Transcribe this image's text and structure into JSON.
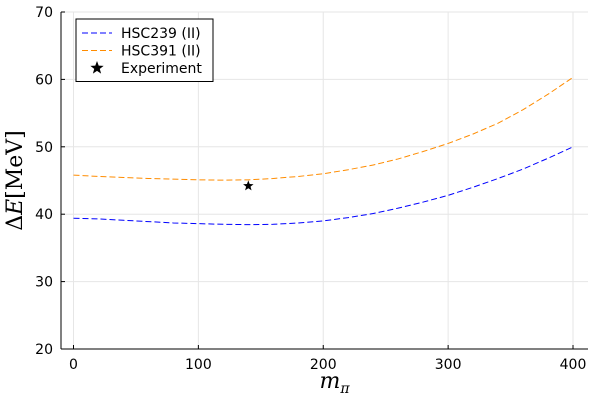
{
  "chart_data": {
    "type": "line",
    "title": "",
    "xlabel": {
      "main": "m",
      "sub": "π"
    },
    "ylabel": {
      "prefix": "Δ",
      "main": "E",
      "open": "[",
      "unit": "MeV",
      "close": "]"
    },
    "xlim": [
      -10,
      412
    ],
    "ylim": [
      20,
      70
    ],
    "x_ticks": [
      0,
      100,
      200,
      300,
      400
    ],
    "y_ticks": [
      20,
      30,
      40,
      50,
      60,
      70
    ],
    "grid": true,
    "legend_position": "top-left",
    "series": [
      {
        "name": "HSC239 (II)",
        "color": "#0000ff",
        "style": "dashed",
        "x": [
          0,
          20,
          40,
          60,
          80,
          100,
          120,
          140,
          160,
          180,
          200,
          220,
          240,
          260,
          280,
          300,
          320,
          340,
          360,
          380,
          400
        ],
        "y": [
          39.4,
          39.3,
          39.1,
          38.9,
          38.7,
          38.6,
          38.5,
          38.45,
          38.5,
          38.7,
          39.0,
          39.5,
          40.1,
          40.9,
          41.8,
          42.8,
          44.0,
          45.3,
          46.7,
          48.3,
          50.0
        ]
      },
      {
        "name": "HSC391 (II)",
        "color": "#ff8c00",
        "style": "dashed",
        "x": [
          0,
          20,
          40,
          60,
          80,
          100,
          120,
          140,
          160,
          180,
          200,
          220,
          240,
          260,
          280,
          300,
          320,
          340,
          360,
          380,
          400
        ],
        "y": [
          45.8,
          45.6,
          45.45,
          45.3,
          45.2,
          45.1,
          45.05,
          45.1,
          45.3,
          45.6,
          46.0,
          46.6,
          47.3,
          48.2,
          49.3,
          50.5,
          51.9,
          53.5,
          55.5,
          57.8,
          60.3
        ]
      }
    ],
    "points": [
      {
        "name": "Experiment",
        "marker": "star",
        "color": "#000000",
        "x": 140,
        "y": 44.2
      }
    ]
  }
}
